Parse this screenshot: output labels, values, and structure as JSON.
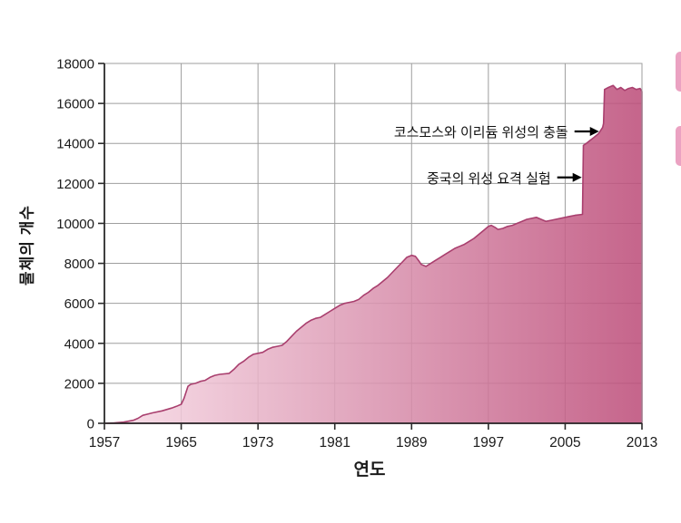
{
  "chart_data": {
    "type": "area",
    "title": "",
    "xlabel": "연도",
    "ylabel": "물체의 개수",
    "xlim": [
      1957,
      2013
    ],
    "ylim": [
      0,
      18000
    ],
    "x_ticks": [
      1957,
      1965,
      1973,
      1981,
      1989,
      1997,
      2005,
      2013
    ],
    "y_ticks": [
      0,
      2000,
      4000,
      6000,
      8000,
      10000,
      12000,
      14000,
      16000,
      18000
    ],
    "grid": true,
    "legend": "none",
    "points": [
      [
        1957,
        0
      ],
      [
        1958,
        20
      ],
      [
        1959,
        60
      ],
      [
        1960,
        150
      ],
      [
        1960.5,
        250
      ],
      [
        1961,
        400
      ],
      [
        1961.5,
        460
      ],
      [
        1962,
        520
      ],
      [
        1963,
        620
      ],
      [
        1964,
        760
      ],
      [
        1964.5,
        850
      ],
      [
        1965,
        950
      ],
      [
        1965.3,
        1250
      ],
      [
        1965.7,
        1850
      ],
      [
        1966,
        1950
      ],
      [
        1966.5,
        2000
      ],
      [
        1967,
        2100
      ],
      [
        1967.5,
        2150
      ],
      [
        1968,
        2300
      ],
      [
        1968.5,
        2400
      ],
      [
        1969,
        2450
      ],
      [
        1970,
        2500
      ],
      [
        1970.5,
        2700
      ],
      [
        1971,
        2950
      ],
      [
        1971.5,
        3100
      ],
      [
        1972,
        3300
      ],
      [
        1972.5,
        3450
      ],
      [
        1973,
        3500
      ],
      [
        1973.5,
        3550
      ],
      [
        1974,
        3700
      ],
      [
        1974.5,
        3800
      ],
      [
        1975,
        3850
      ],
      [
        1975.5,
        3900
      ],
      [
        1976,
        4100
      ],
      [
        1976.5,
        4350
      ],
      [
        1977,
        4600
      ],
      [
        1977.5,
        4800
      ],
      [
        1978,
        5000
      ],
      [
        1978.5,
        5150
      ],
      [
        1979,
        5250
      ],
      [
        1979.5,
        5300
      ],
      [
        1980,
        5450
      ],
      [
        1980.5,
        5600
      ],
      [
        1981,
        5750
      ],
      [
        1981.5,
        5900
      ],
      [
        1982,
        6000
      ],
      [
        1982.5,
        6050
      ],
      [
        1983,
        6100
      ],
      [
        1983.5,
        6200
      ],
      [
        1984,
        6400
      ],
      [
        1984.5,
        6550
      ],
      [
        1985,
        6750
      ],
      [
        1985.5,
        6900
      ],
      [
        1986,
        7100
      ],
      [
        1986.5,
        7300
      ],
      [
        1987,
        7550
      ],
      [
        1987.5,
        7800
      ],
      [
        1988,
        8050
      ],
      [
        1988.5,
        8300
      ],
      [
        1989,
        8400
      ],
      [
        1989.4,
        8350
      ],
      [
        1989.8,
        8100
      ],
      [
        1990,
        7950
      ],
      [
        1990.5,
        7850
      ],
      [
        1991,
        8000
      ],
      [
        1991.5,
        8150
      ],
      [
        1992,
        8300
      ],
      [
        1992.5,
        8450
      ],
      [
        1993,
        8600
      ],
      [
        1993.5,
        8750
      ],
      [
        1994,
        8850
      ],
      [
        1994.5,
        8950
      ],
      [
        1995,
        9100
      ],
      [
        1995.5,
        9250
      ],
      [
        1996,
        9450
      ],
      [
        1996.5,
        9650
      ],
      [
        1997,
        9850
      ],
      [
        1997.3,
        9900
      ],
      [
        1997.7,
        9800
      ],
      [
        1998,
        9700
      ],
      [
        1998.5,
        9750
      ],
      [
        1999,
        9850
      ],
      [
        1999.5,
        9900
      ],
      [
        2000,
        10000
      ],
      [
        2000.5,
        10100
      ],
      [
        2001,
        10200
      ],
      [
        2001.5,
        10250
      ],
      [
        2002,
        10300
      ],
      [
        2002.5,
        10200
      ],
      [
        2003,
        10100
      ],
      [
        2003.5,
        10150
      ],
      [
        2004,
        10200
      ],
      [
        2004.5,
        10250
      ],
      [
        2005,
        10300
      ],
      [
        2005.5,
        10350
      ],
      [
        2006,
        10400
      ],
      [
        2006.8,
        10450
      ],
      [
        2006.9,
        13900
      ],
      [
        2007.2,
        14000
      ],
      [
        2007.6,
        14150
      ],
      [
        2008,
        14300
      ],
      [
        2008.5,
        14500
      ],
      [
        2008.9,
        14800
      ],
      [
        2009,
        15000
      ],
      [
        2009.1,
        16700
      ],
      [
        2009.5,
        16800
      ],
      [
        2010,
        16900
      ],
      [
        2010.4,
        16700
      ],
      [
        2010.8,
        16800
      ],
      [
        2011.2,
        16650
      ],
      [
        2011.6,
        16750
      ],
      [
        2012,
        16800
      ],
      [
        2012.4,
        16700
      ],
      [
        2012.8,
        16750
      ],
      [
        2013,
        16600
      ]
    ],
    "annotations": [
      {
        "text": "코스모스와 이리듐 위성의 충돌",
        "target_year": 2009,
        "target_value": 14600
      },
      {
        "text": "중국의 위성 요격 실험",
        "target_year": 2007.2,
        "target_value": 12300
      }
    ],
    "colors": {
      "fill_light": "#f8dce7",
      "fill_dark": "#bd4e7a",
      "line": "#a93f6e",
      "grid": "#9e9e9e",
      "axis": "#2a2a2a",
      "text": "#1a1a1a",
      "annotation_arrow": "#000000"
    }
  },
  "decor": {
    "edge_tab_color": "#eba2c2"
  }
}
